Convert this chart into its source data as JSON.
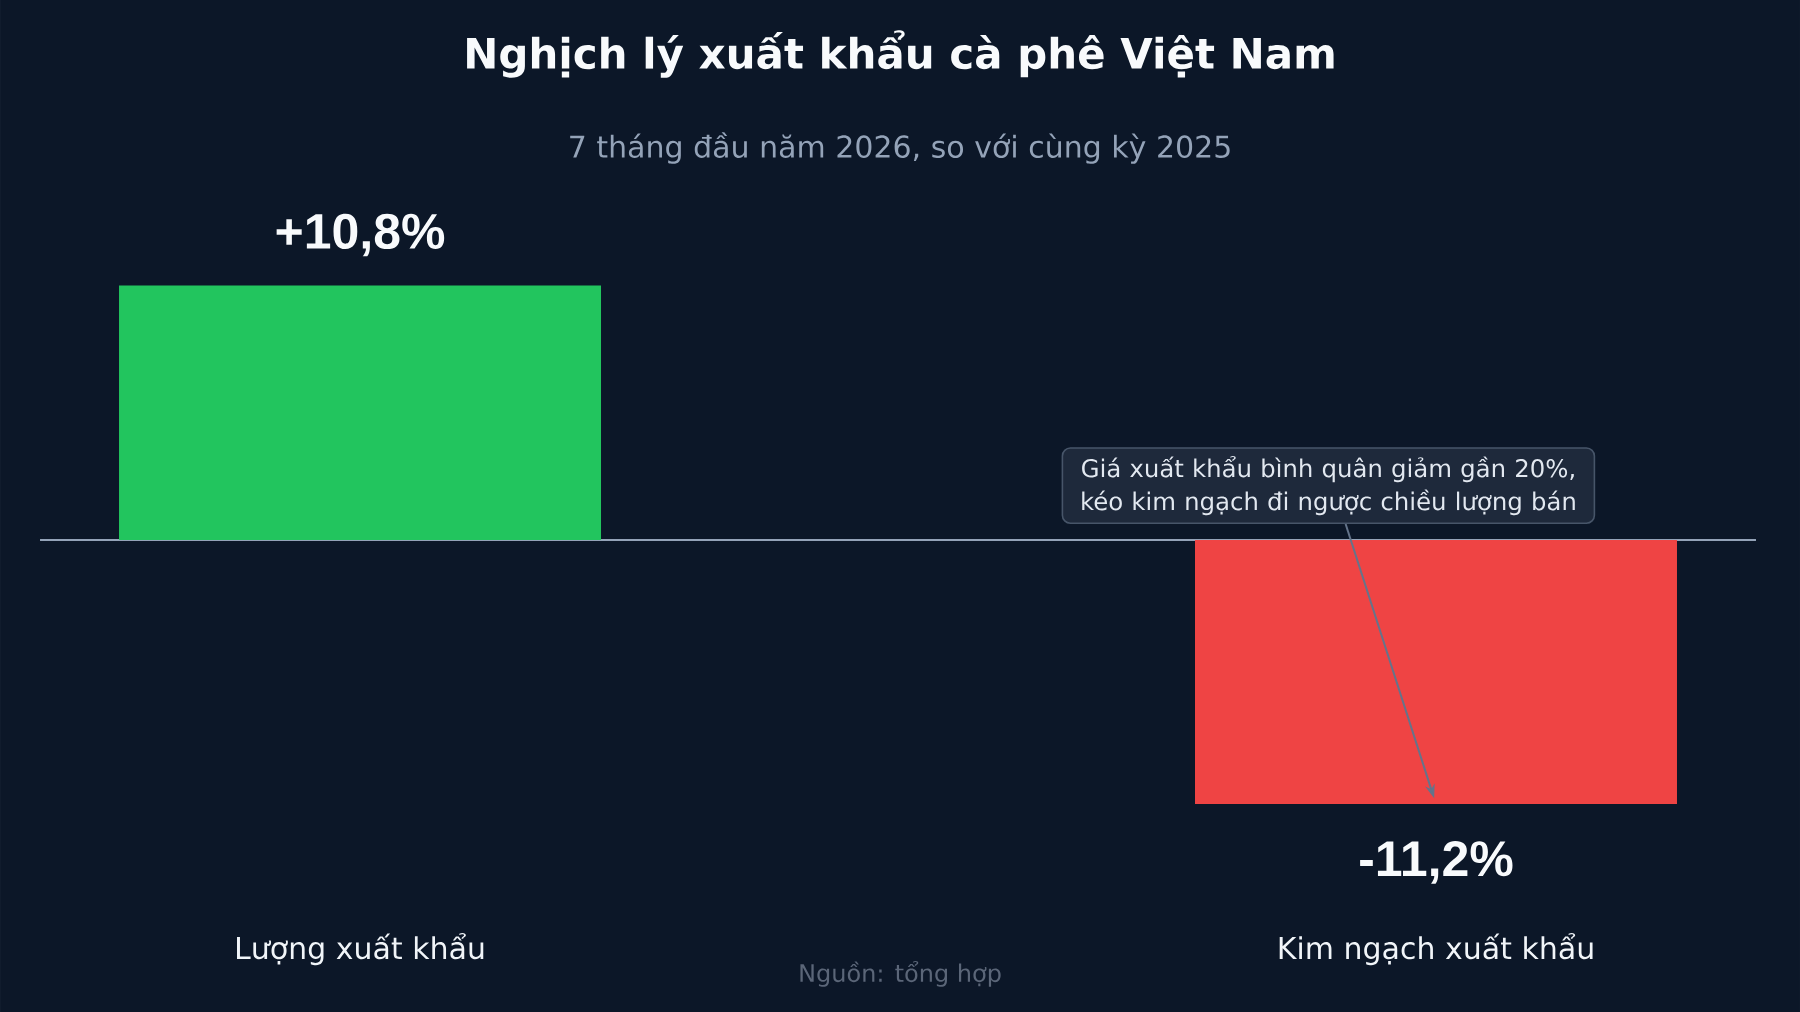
{
  "chart_data": {
    "type": "bar",
    "title": "Nghịch lý xuất khẩu cà phê Việt Nam",
    "subtitle": "7 tháng đầu năm 2026, so với cùng kỳ 2025",
    "categories": [
      "Lượng xuất khẩu",
      "Kim ngạch xuất khẩu"
    ],
    "values": [
      10.8,
      -11.2
    ],
    "colors": [
      "#22c55e",
      "#ef4444"
    ],
    "value_labels": [
      "+10,8%",
      "-11,2%"
    ],
    "annotations": [
      {
        "text": "Giá xuất khẩu bình quân giảm gần 20%, kéo kim ngạch đi ngược chiều lượng bán",
        "x": "Kim ngạch xuất khẩu",
        "y": -11.2
      },
      "Nguồn: tổng hợp"
    ]
  }
}
